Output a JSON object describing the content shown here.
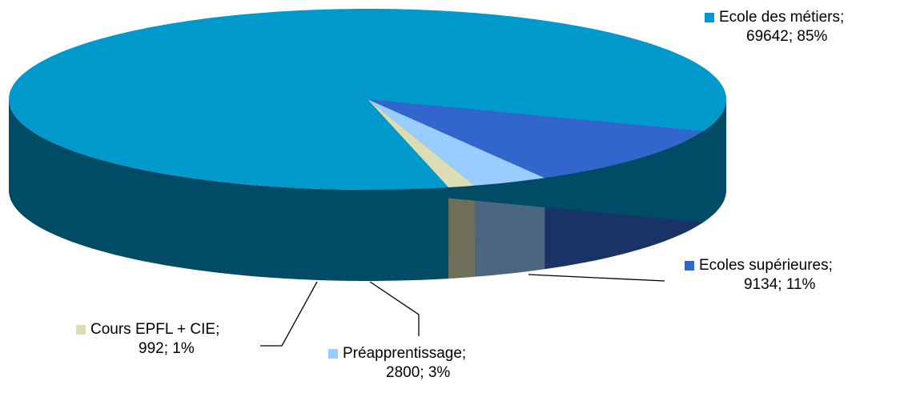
{
  "chart_data": {
    "type": "pie",
    "style": "3d",
    "title": "",
    "slices": [
      {
        "name": "Ecole des métiers",
        "value": 69642,
        "percent": "85%",
        "color": "#0099CC",
        "side_color": "#004C66"
      },
      {
        "name": "Ecoles supérieures",
        "value": 9134,
        "percent": "11%",
        "color": "#3366CC",
        "side_color": "#1A3366"
      },
      {
        "name": "Préapprentissage",
        "value": 2800,
        "percent": "3%",
        "color": "#99CCFF",
        "side_color": "#4D667F"
      },
      {
        "name": "Cours EPFL + CIE",
        "value": 992,
        "percent": "1%",
        "color": "#DDDDB3",
        "side_color": "#6E6E59"
      }
    ],
    "labels": [
      {
        "line1": "Ecole des métiers;",
        "line2": "69642; 85%"
      },
      {
        "line1": "Ecoles supérieures;",
        "line2": "9134; 11%"
      },
      {
        "line1": "Préapprentissage;",
        "line2": "2800; 3%"
      },
      {
        "line1": "Cours EPFL + CIE;",
        "line2": "992; 1%"
      }
    ]
  }
}
